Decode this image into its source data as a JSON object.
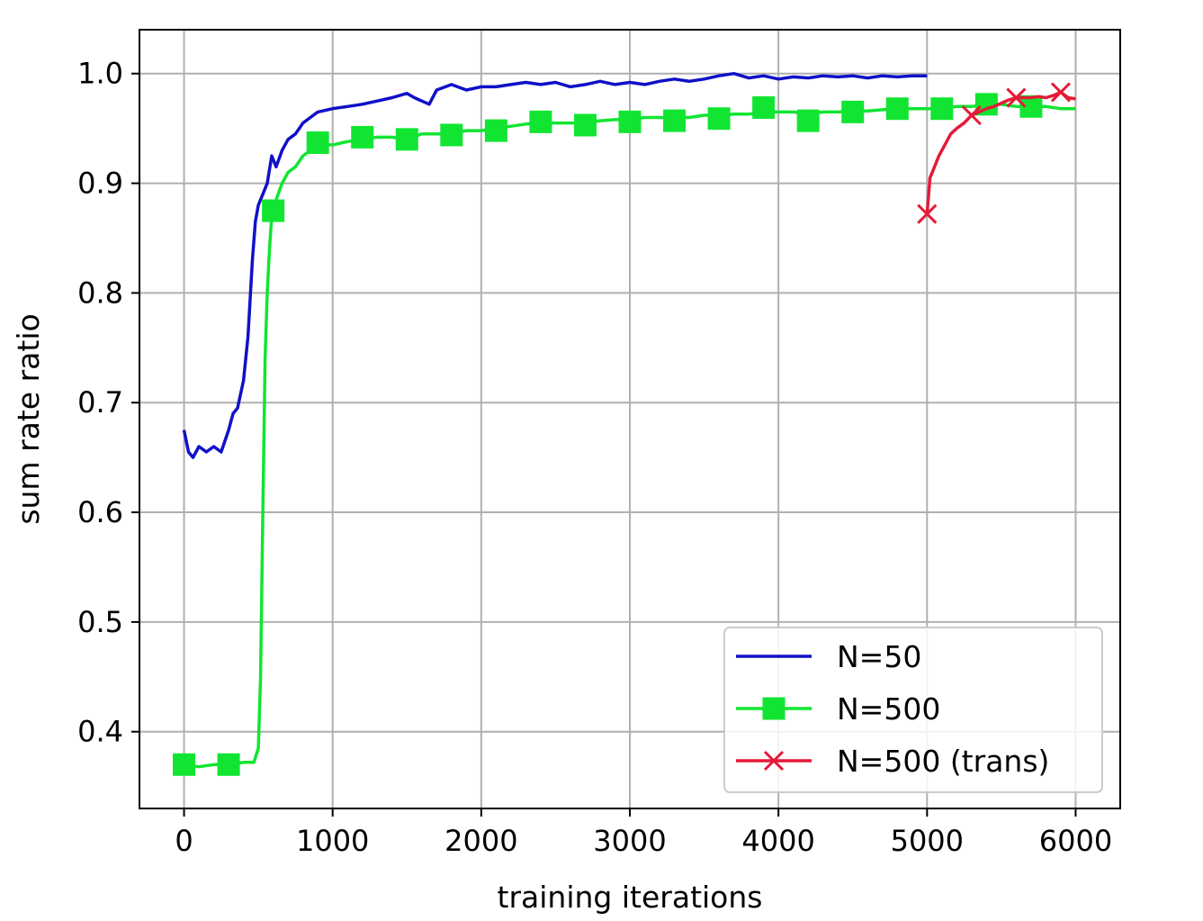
{
  "chart_data": {
    "type": "line",
    "title": "",
    "xlabel": "training iterations",
    "ylabel": "sum rate ratio",
    "xlim": [
      -300,
      6300
    ],
    "ylim": [
      0.33,
      1.04
    ],
    "xticks": [
      0,
      1000,
      2000,
      3000,
      4000,
      5000,
      6000
    ],
    "yticks": [
      0.4,
      0.5,
      0.6,
      0.7,
      0.8,
      0.9,
      1.0
    ],
    "xtick_labels": [
      "0",
      "1000",
      "2000",
      "3000",
      "4000",
      "5000",
      "6000"
    ],
    "ytick_labels": [
      "0.4",
      "0.5",
      "0.6",
      "0.7",
      "0.8",
      "0.9",
      "1.0"
    ],
    "grid": true,
    "legend_position": "bottom-right",
    "series": [
      {
        "name": "N=50",
        "color": "#1010c8",
        "marker": "none",
        "x": [
          0,
          30,
          60,
          100,
          150,
          200,
          250,
          300,
          330,
          360,
          400,
          430,
          460,
          480,
          500,
          530,
          560,
          590,
          620,
          660,
          700,
          750,
          800,
          850,
          900,
          1000,
          1100,
          1200,
          1300,
          1400,
          1500,
          1550,
          1600,
          1650,
          1700,
          1800,
          1900,
          2000,
          2100,
          2200,
          2300,
          2400,
          2500,
          2600,
          2700,
          2800,
          2900,
          3000,
          3100,
          3200,
          3300,
          3400,
          3500,
          3600,
          3700,
          3800,
          3900,
          4000,
          4100,
          4200,
          4300,
          4400,
          4500,
          4600,
          4700,
          4800,
          4900,
          5000
        ],
        "values": [
          0.675,
          0.655,
          0.65,
          0.66,
          0.655,
          0.66,
          0.655,
          0.675,
          0.69,
          0.695,
          0.72,
          0.76,
          0.83,
          0.865,
          0.88,
          0.89,
          0.9,
          0.925,
          0.915,
          0.93,
          0.94,
          0.945,
          0.955,
          0.96,
          0.965,
          0.968,
          0.97,
          0.972,
          0.975,
          0.978,
          0.982,
          0.978,
          0.975,
          0.972,
          0.985,
          0.99,
          0.985,
          0.988,
          0.988,
          0.99,
          0.992,
          0.99,
          0.992,
          0.988,
          0.99,
          0.993,
          0.99,
          0.992,
          0.99,
          0.993,
          0.995,
          0.993,
          0.995,
          0.998,
          1.0,
          0.996,
          0.998,
          0.995,
          0.997,
          0.996,
          0.998,
          0.997,
          0.998,
          0.996,
          0.998,
          0.997,
          0.998,
          0.998
        ]
      },
      {
        "name": "N=500",
        "color": "#11e532",
        "marker": "square",
        "x": [
          0,
          100,
          200,
          300,
          400,
          470,
          500,
          515,
          530,
          545,
          560,
          575,
          590,
          620,
          660,
          700,
          750,
          800,
          900,
          1000,
          1100,
          1200,
          1300,
          1400,
          1500,
          1600,
          1700,
          1800,
          1900,
          2000,
          2100,
          2200,
          2300,
          2400,
          2500,
          2600,
          2700,
          2800,
          2900,
          3000,
          3100,
          3200,
          3300,
          3400,
          3500,
          3600,
          3700,
          3800,
          3900,
          4000,
          4100,
          4200,
          4300,
          4400,
          4500,
          4600,
          4700,
          4800,
          4900,
          5000,
          5100,
          5200,
          5300,
          5400,
          5500,
          5600,
          5700,
          5800,
          5900,
          6000
        ],
        "values": [
          0.37,
          0.368,
          0.37,
          0.37,
          0.372,
          0.372,
          0.385,
          0.45,
          0.6,
          0.74,
          0.8,
          0.84,
          0.87,
          0.885,
          0.9,
          0.91,
          0.915,
          0.925,
          0.935,
          0.935,
          0.938,
          0.94,
          0.942,
          0.942,
          0.94,
          0.945,
          0.945,
          0.945,
          0.948,
          0.948,
          0.95,
          0.952,
          0.954,
          0.955,
          0.955,
          0.955,
          0.955,
          0.957,
          0.958,
          0.958,
          0.96,
          0.96,
          0.96,
          0.96,
          0.962,
          0.962,
          0.963,
          0.963,
          0.965,
          0.965,
          0.965,
          0.963,
          0.965,
          0.965,
          0.966,
          0.966,
          0.967,
          0.968,
          0.968,
          0.968,
          0.968,
          0.97,
          0.97,
          0.972,
          0.972,
          0.97,
          0.97,
          0.97,
          0.968,
          0.968
        ],
        "marker_x": [
          0,
          300,
          600,
          900,
          1200,
          1500,
          1800,
          2100,
          2400,
          2700,
          3000,
          3300,
          3600,
          3900,
          4200,
          4500,
          4800,
          5100,
          5400,
          5700
        ],
        "marker_values": [
          0.37,
          0.37,
          0.875,
          0.937,
          0.942,
          0.94,
          0.944,
          0.948,
          0.956,
          0.953,
          0.956,
          0.957,
          0.959,
          0.969,
          0.957,
          0.965,
          0.968,
          0.968,
          0.972,
          0.97
        ]
      },
      {
        "name": "N=500 (trans)",
        "color": "#e41a38",
        "marker": "x",
        "x": [
          5000,
          5020,
          5050,
          5080,
          5120,
          5160,
          5200,
          5250,
          5300,
          5350,
          5400,
          5450,
          5500,
          5550,
          5600,
          5650,
          5700,
          5750,
          5800,
          5850,
          5900,
          5950,
          6000
        ],
        "values": [
          0.872,
          0.905,
          0.915,
          0.925,
          0.935,
          0.945,
          0.95,
          0.955,
          0.962,
          0.965,
          0.968,
          0.97,
          0.973,
          0.976,
          0.978,
          0.978,
          0.978,
          0.979,
          0.978,
          0.98,
          0.983,
          0.978,
          0.977
        ],
        "marker_x": [
          5000,
          5300,
          5600,
          5900
        ],
        "marker_values": [
          0.872,
          0.962,
          0.978,
          0.983
        ]
      }
    ]
  }
}
